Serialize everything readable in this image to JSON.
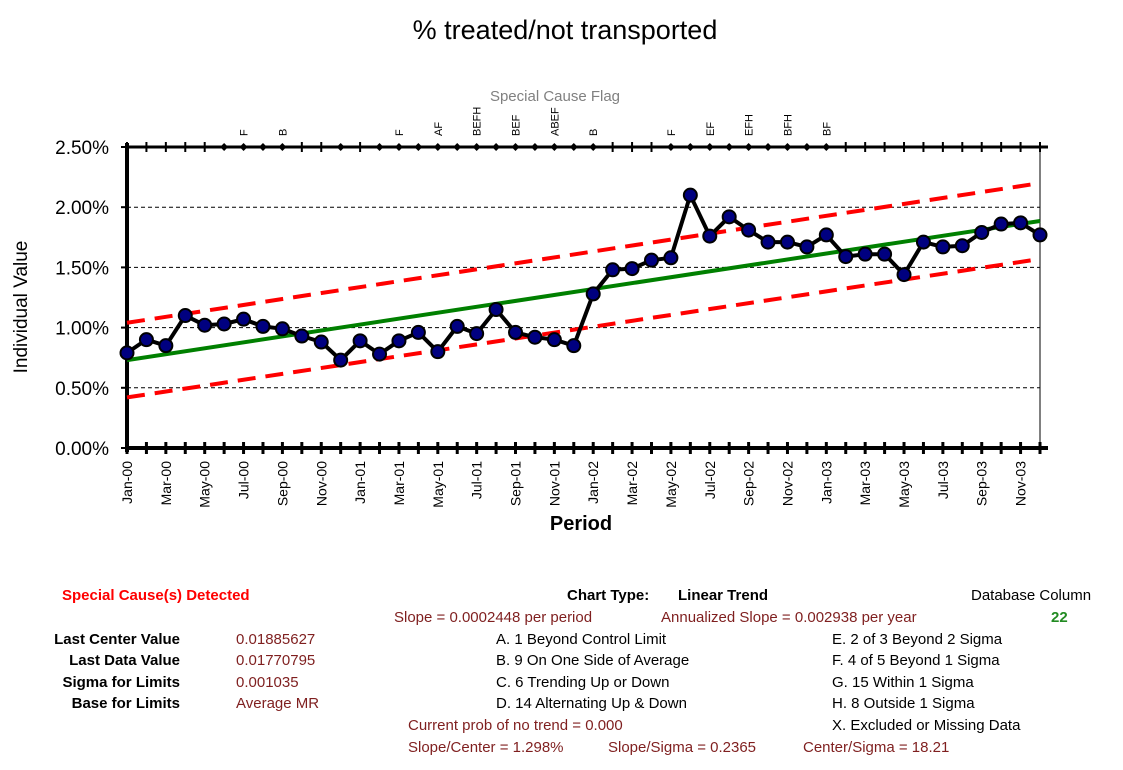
{
  "chart_data": {
    "type": "line",
    "title": "% treated/not transported",
    "xlabel": "Period",
    "ylabel": "Individual Value",
    "flag_title": "Special Cause Flag",
    "ylim": [
      0,
      0.025
    ],
    "y_ticks": [
      "0.00%",
      "0.50%",
      "1.00%",
      "1.50%",
      "2.00%",
      "2.50%"
    ],
    "x_tick_labels": [
      "Jan-00",
      "Mar-00",
      "May-00",
      "Jul-00",
      "Sep-00",
      "Nov-00",
      "Jan-01",
      "Mar-01",
      "May-01",
      "Jul-01",
      "Sep-01",
      "Nov-01",
      "Jan-02",
      "Mar-02",
      "May-02",
      "Jul-02",
      "Sep-02",
      "Nov-02",
      "Jan-03",
      "Mar-03",
      "May-03",
      "Jul-03",
      "Sep-03",
      "Nov-03"
    ],
    "periods": [
      "Jan-00",
      "Feb-00",
      "Mar-00",
      "Apr-00",
      "May-00",
      "Jun-00",
      "Jul-00",
      "Aug-00",
      "Sep-00",
      "Oct-00",
      "Nov-00",
      "Dec-00",
      "Jan-01",
      "Feb-01",
      "Mar-01",
      "Apr-01",
      "May-01",
      "Jun-01",
      "Jul-01",
      "Aug-01",
      "Sep-01",
      "Oct-01",
      "Nov-01",
      "Dec-01",
      "Jan-02",
      "Feb-02",
      "Mar-02",
      "Apr-02",
      "May-02",
      "Jun-02",
      "Jul-02",
      "Aug-02",
      "Sep-02",
      "Oct-02",
      "Nov-02",
      "Dec-02",
      "Jan-03",
      "Feb-03",
      "Mar-03",
      "Apr-03",
      "May-03",
      "Jun-03",
      "Jul-03",
      "Aug-03",
      "Sep-03",
      "Oct-03",
      "Nov-03",
      "Dec-03"
    ],
    "series": [
      {
        "values": [
          0.0079,
          0.009,
          0.0085,
          0.011,
          0.0102,
          0.0103,
          0.0107,
          0.0101,
          0.0099,
          0.0093,
          0.0088,
          0.0073,
          0.0089,
          0.0078,
          0.0089,
          0.0096,
          0.008,
          0.0101,
          0.0095,
          0.0115,
          0.0096,
          0.0092,
          0.009,
          0.0085,
          0.0128,
          0.0148,
          0.0149,
          0.0156,
          0.0158,
          0.021,
          0.0176,
          0.0192,
          0.0181,
          0.0171,
          0.0171,
          0.0167,
          0.0177,
          0.0159,
          0.0161,
          0.0161,
          0.0144,
          0.0171,
          0.0167,
          0.0168,
          0.0179,
          0.0186,
          0.0187,
          0.0177
        ]
      }
    ],
    "center_line": {
      "start": 0.0073,
      "end": 0.01885627
    },
    "upper_limit": {
      "start": 0.0104,
      "end": 0.022
    },
    "lower_limit": {
      "start": 0.0042,
      "end": 0.0157
    },
    "flags": [
      {
        "period": 6,
        "label": "F"
      },
      {
        "period": 8,
        "label": "B"
      },
      {
        "period": 14,
        "label": "F"
      },
      {
        "period": 16,
        "label": "AF"
      },
      {
        "period": 18,
        "label": "BEFH"
      },
      {
        "period": 20,
        "label": "BEF"
      },
      {
        "period": 22,
        "label": "ABEF"
      },
      {
        "period": 24,
        "label": "B"
      },
      {
        "period": 28,
        "label": "F"
      },
      {
        "period": 30,
        "label": "EF"
      },
      {
        "period": 32,
        "label": "EFH"
      },
      {
        "period": 34,
        "label": "BFH"
      },
      {
        "period": 36,
        "label": "BF"
      }
    ],
    "flag_rail_periods": [
      5,
      6,
      7,
      8,
      11,
      13,
      14,
      15,
      16,
      17,
      18,
      19,
      20,
      21,
      22,
      23,
      24,
      28,
      29,
      30,
      31,
      32,
      33,
      34,
      35,
      36
    ],
    "colors": {
      "data": "#000000",
      "marker": "#000080",
      "center": "#008000",
      "limits": "#ff0000"
    }
  },
  "info": {
    "special_cause": "Special Cause(s) Detected",
    "chart_type_label": "Chart Type:",
    "chart_type_value": "Linear Trend",
    "database_column_label": "Database Column",
    "database_column_value": "22",
    "slope": "Slope = 0.0002448 per period",
    "annualized_slope": "Annualized Slope = 0.002938 per year",
    "last_center_label": "Last Center Value",
    "last_center_value": "0.01885627",
    "last_data_label": "Last Data Value",
    "last_data_value": "0.01770795",
    "sigma_label": "Sigma for Limits",
    "sigma_value": "0.001035",
    "base_label": "Base for Limits",
    "base_value": "Average MR",
    "rules": {
      "a": "A.  1 Beyond Control Limit",
      "b": "B.  9 On One Side of Average",
      "c": "C.  6 Trending Up or Down",
      "d": "D.  14 Alternating  Up & Down",
      "e": "E.   2 of 3 Beyond 2 Sigma",
      "f": "F.   4 of 5 Beyond 1 Sigma",
      "g": "G.   15 Within 1 Sigma",
      "h": "H.   8 Outside 1 Sigma",
      "x": "X.   Excluded or Missing Data"
    },
    "prob_no_trend": "Current prob of no trend = 0.000",
    "slope_center": "Slope/Center = 1.298%",
    "slope_sigma": "Slope/Sigma = 0.2365",
    "center_sigma": "Center/Sigma = 18.21"
  }
}
